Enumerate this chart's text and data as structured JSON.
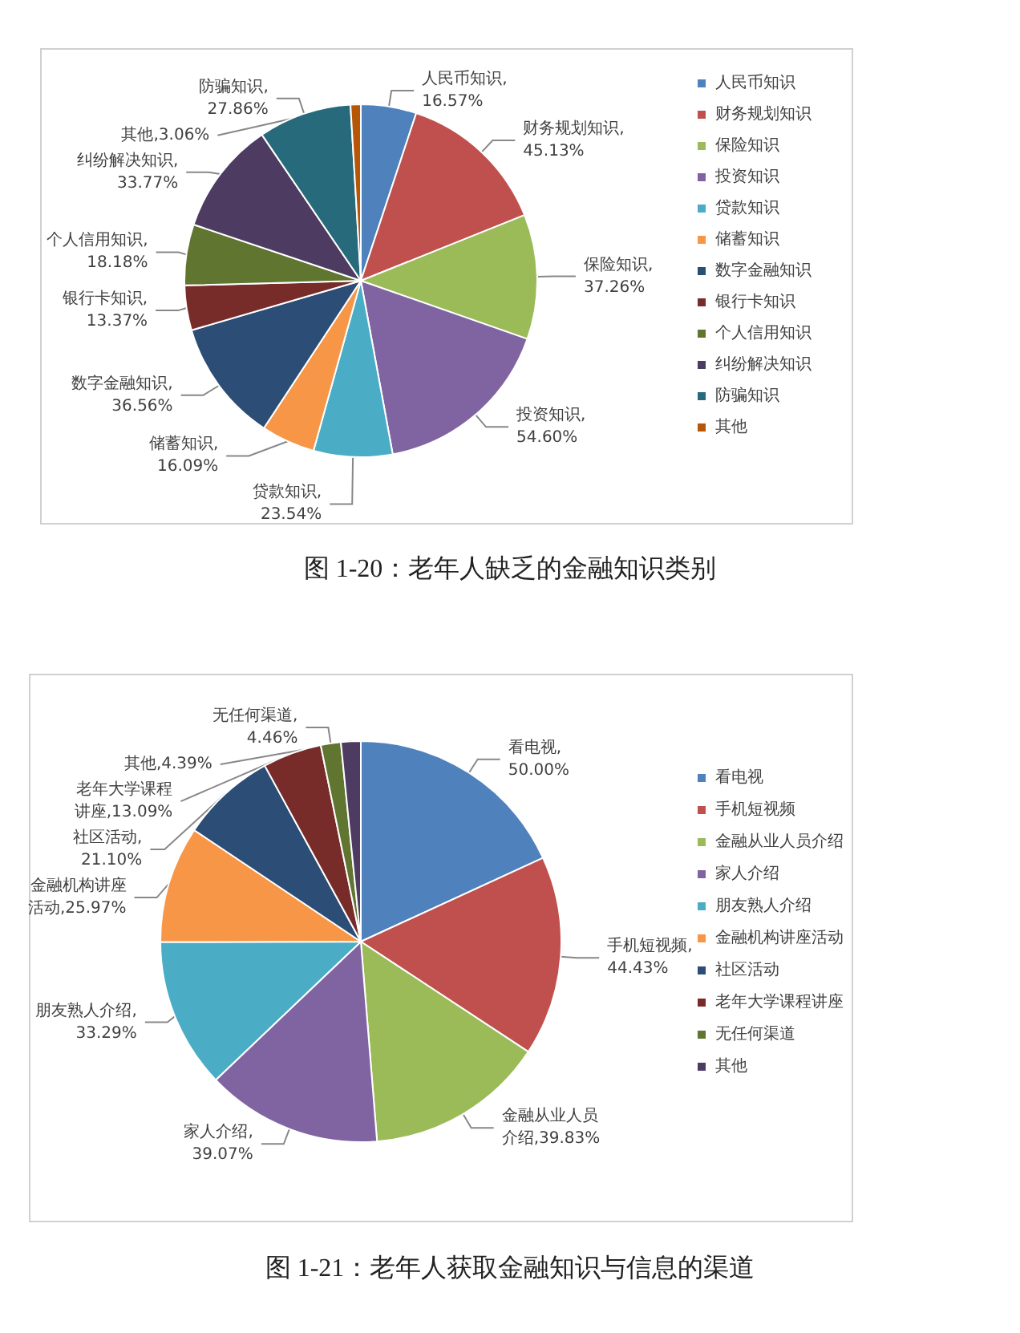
{
  "chart_data": [
    {
      "type": "pie",
      "title": "图 1-20：老年人缺乏的金融知识类别",
      "legend": "right",
      "categories": [
        "人民币知识",
        "财务规划知识",
        "保险知识",
        "投资知识",
        "贷款知识",
        "储蓄知识",
        "数字金融知识",
        "银行卡知识",
        "个人信用知识",
        "纠纷解决知识",
        "防骗知识",
        "其他"
      ],
      "values": [
        16.57,
        45.13,
        37.26,
        54.6,
        23.54,
        16.09,
        36.56,
        13.37,
        18.18,
        33.77,
        27.86,
        3.06
      ],
      "value_labels": [
        "人民币知识,16.57%",
        "财务规划知识,45.13%",
        "保险知识,37.26%",
        "投资知识,54.60%",
        "贷款知识,23.54%",
        "储蓄知识,16.09%",
        "数字金融知识,36.56%",
        "银行卡知识,13.37%",
        "个人信用知识,18.18%",
        "纠纷解决知识,33.77%",
        "防骗知识,27.86%",
        "其他,3.06%"
      ],
      "colors": [
        "#4f81bd",
        "#c0504d",
        "#9bbb59",
        "#8064a2",
        "#4bacc6",
        "#f79646",
        "#2c4d75",
        "#772c2a",
        "#5f7530",
        "#4d3b62",
        "#276a7c",
        "#b65708"
      ]
    },
    {
      "type": "pie",
      "title": "图 1-21：老年人获取金融知识与信息的渠道",
      "legend": "right",
      "categories": [
        "看电视",
        "手机短视频",
        "金融从业人员介绍",
        "家人介绍",
        "朋友熟人介绍",
        "金融机构讲座活动",
        "社区活动",
        "老年大学课程讲座",
        "无任何渠道",
        "其他"
      ],
      "values": [
        50.0,
        44.43,
        39.83,
        39.07,
        33.29,
        25.97,
        21.1,
        13.09,
        4.46,
        4.39
      ],
      "value_labels": [
        "看电视,50.00%",
        "手机短视频,44.43%",
        "金融从业人员介绍,39.83%",
        "家人介绍,39.07%",
        "朋友熟人介绍,33.29%",
        "金融机构讲座活动,25.97%",
        "社区活动,21.10%",
        "老年大学课程讲座,13.09%",
        "无任何渠道,4.46%",
        "其他,4.39%"
      ],
      "colors": [
        "#4f81bd",
        "#c0504d",
        "#9bbb59",
        "#8064a2",
        "#4bacc6",
        "#f79646",
        "#2c4d75",
        "#772c2a",
        "#5f7530",
        "#4d3b62"
      ]
    }
  ]
}
